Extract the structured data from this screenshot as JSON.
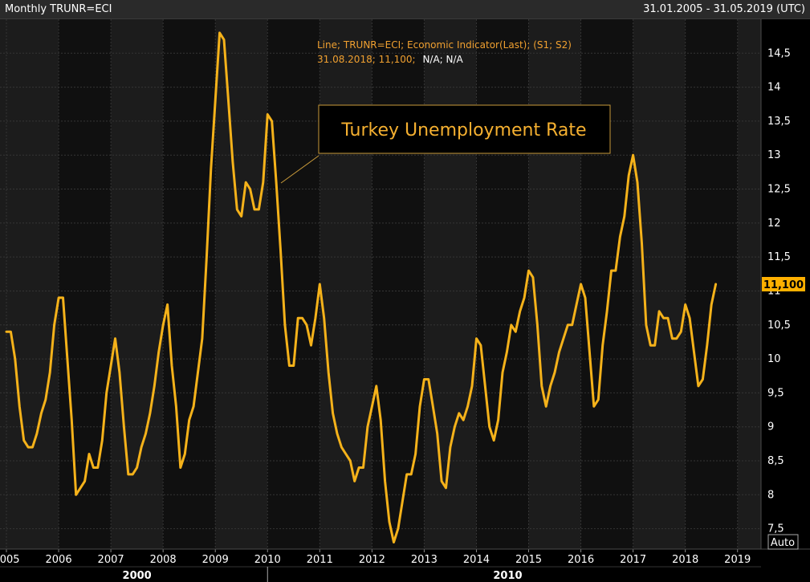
{
  "header": {
    "instrument": "Monthly TRUNR=ECI",
    "date_range": "31.01.2005 - 31.05.2019 (UTC)"
  },
  "legend": {
    "line1": "Line; TRUNR=ECI; Economic Indicator(Last); (S1; S2)",
    "line2_orange": "31.08.2018; 11,100;",
    "line2_white": "N/A; N/A"
  },
  "annotation": {
    "text": "Turkey Unemployment Rate"
  },
  "last_value_label": "11,100",
  "auto_label": "Auto",
  "colors": {
    "background": "#000000",
    "band_dark": "#101010",
    "band_light": "#1c1c1c",
    "grid": "#353535",
    "line": "#f5b21a",
    "legend_text": "#f0a030",
    "annotation_text": "#f5b030",
    "last_value_bg": "#ffb000",
    "axis_text": "#ffffff"
  },
  "chart_data": {
    "type": "line",
    "title": "",
    "xlabel": "",
    "ylabel": "",
    "ylim": [
      7.2,
      15.0
    ],
    "xlim": [
      "2005-01-01",
      "2019-05-31"
    ],
    "grid": true,
    "y_ticks": [
      "7,5",
      "8",
      "8,5",
      "9",
      "9,5",
      "10",
      "10,5",
      "11",
      "11,5",
      "12",
      "12,5",
      "13",
      "13,5",
      "14",
      "14,5"
    ],
    "y_tick_values": [
      7.5,
      8,
      8.5,
      9,
      9.5,
      10,
      10.5,
      11,
      11.5,
      12,
      12.5,
      13,
      13.5,
      14,
      14.5
    ],
    "x_ticks": [
      "2005",
      "2006",
      "2007",
      "2008",
      "2009",
      "2010",
      "2011",
      "2012",
      "2013",
      "2014",
      "2015",
      "2016",
      "2017",
      "2018",
      "2019"
    ],
    "decade_labels": [
      "2000",
      "2010"
    ],
    "series": [
      {
        "name": "TRUNR=ECI",
        "x": [
          "2005-01",
          "2005-02",
          "2005-03",
          "2005-04",
          "2005-05",
          "2005-06",
          "2005-07",
          "2005-08",
          "2005-09",
          "2005-10",
          "2005-11",
          "2005-12",
          "2006-01",
          "2006-02",
          "2006-03",
          "2006-04",
          "2006-05",
          "2006-06",
          "2006-07",
          "2006-08",
          "2006-09",
          "2006-10",
          "2006-11",
          "2006-12",
          "2007-01",
          "2007-02",
          "2007-03",
          "2007-04",
          "2007-05",
          "2007-06",
          "2007-07",
          "2007-08",
          "2007-09",
          "2007-10",
          "2007-11",
          "2007-12",
          "2008-01",
          "2008-02",
          "2008-03",
          "2008-04",
          "2008-05",
          "2008-06",
          "2008-07",
          "2008-08",
          "2008-09",
          "2008-10",
          "2008-11",
          "2008-12",
          "2009-01",
          "2009-02",
          "2009-03",
          "2009-04",
          "2009-05",
          "2009-06",
          "2009-07",
          "2009-08",
          "2009-09",
          "2009-10",
          "2009-11",
          "2009-12",
          "2010-01",
          "2010-02",
          "2010-03",
          "2010-04",
          "2010-05",
          "2010-06",
          "2010-07",
          "2010-08",
          "2010-09",
          "2010-10",
          "2010-11",
          "2010-12",
          "2011-01",
          "2011-02",
          "2011-03",
          "2011-04",
          "2011-05",
          "2011-06",
          "2011-07",
          "2011-08",
          "2011-09",
          "2011-10",
          "2011-11",
          "2011-12",
          "2012-01",
          "2012-02",
          "2012-03",
          "2012-04",
          "2012-05",
          "2012-06",
          "2012-07",
          "2012-08",
          "2012-09",
          "2012-10",
          "2012-11",
          "2012-12",
          "2013-01",
          "2013-02",
          "2013-03",
          "2013-04",
          "2013-05",
          "2013-06",
          "2013-07",
          "2013-08",
          "2013-09",
          "2013-10",
          "2013-11",
          "2013-12",
          "2014-01",
          "2014-02",
          "2014-03",
          "2014-04",
          "2014-05",
          "2014-06",
          "2014-07",
          "2014-08",
          "2014-09",
          "2014-10",
          "2014-11",
          "2014-12",
          "2015-01",
          "2015-02",
          "2015-03",
          "2015-04",
          "2015-05",
          "2015-06",
          "2015-07",
          "2015-08",
          "2015-09",
          "2015-10",
          "2015-11",
          "2015-12",
          "2016-01",
          "2016-02",
          "2016-03",
          "2016-04",
          "2016-05",
          "2016-06",
          "2016-07",
          "2016-08",
          "2016-09",
          "2016-10",
          "2016-11",
          "2016-12",
          "2017-01",
          "2017-02",
          "2017-03",
          "2017-04",
          "2017-05",
          "2017-06",
          "2017-07",
          "2017-08",
          "2017-09",
          "2017-10",
          "2017-11",
          "2017-12",
          "2018-01",
          "2018-02",
          "2018-03",
          "2018-04",
          "2018-05",
          "2018-06",
          "2018-07",
          "2018-08"
        ],
        "values": [
          10.4,
          10.4,
          10.0,
          9.3,
          8.8,
          8.7,
          8.7,
          8.9,
          9.2,
          9.4,
          9.8,
          10.5,
          10.9,
          10.9,
          10.0,
          9.1,
          8.0,
          8.1,
          8.2,
          8.6,
          8.4,
          8.4,
          8.8,
          9.5,
          9.9,
          10.3,
          9.8,
          9.0,
          8.3,
          8.3,
          8.4,
          8.7,
          8.9,
          9.2,
          9.6,
          10.1,
          10.5,
          10.8,
          9.9,
          9.3,
          8.4,
          8.6,
          9.1,
          9.3,
          9.8,
          10.3,
          11.5,
          12.8,
          13.8,
          14.8,
          14.7,
          13.8,
          12.9,
          12.2,
          12.1,
          12.6,
          12.5,
          12.2,
          12.2,
          12.6,
          13.6,
          13.5,
          12.6,
          11.6,
          10.5,
          9.9,
          9.9,
          10.6,
          10.6,
          10.5,
          10.2,
          10.6,
          11.1,
          10.6,
          9.8,
          9.2,
          8.9,
          8.7,
          8.6,
          8.5,
          8.2,
          8.4,
          8.4,
          9.0,
          9.3,
          9.6,
          9.1,
          8.2,
          7.6,
          7.3,
          7.5,
          7.9,
          8.3,
          8.3,
          8.6,
          9.3,
          9.7,
          9.7,
          9.3,
          8.9,
          8.2,
          8.1,
          8.7,
          9.0,
          9.2,
          9.1,
          9.3,
          9.6,
          10.3,
          10.2,
          9.6,
          9.0,
          8.8,
          9.1,
          9.8,
          10.1,
          10.5,
          10.4,
          10.7,
          10.9,
          11.3,
          11.2,
          10.5,
          9.6,
          9.3,
          9.6,
          9.8,
          10.1,
          10.3,
          10.5,
          10.5,
          10.8,
          11.1,
          10.9,
          10.1,
          9.3,
          9.4,
          10.2,
          10.7,
          11.3,
          11.3,
          11.8,
          12.1,
          12.7,
          13.0,
          12.6,
          11.7,
          10.5,
          10.2,
          10.2,
          10.7,
          10.6,
          10.6,
          10.3,
          10.3,
          10.4,
          10.8,
          10.6,
          10.1,
          9.6,
          9.7,
          10.2,
          10.8,
          11.1
        ]
      }
    ]
  }
}
